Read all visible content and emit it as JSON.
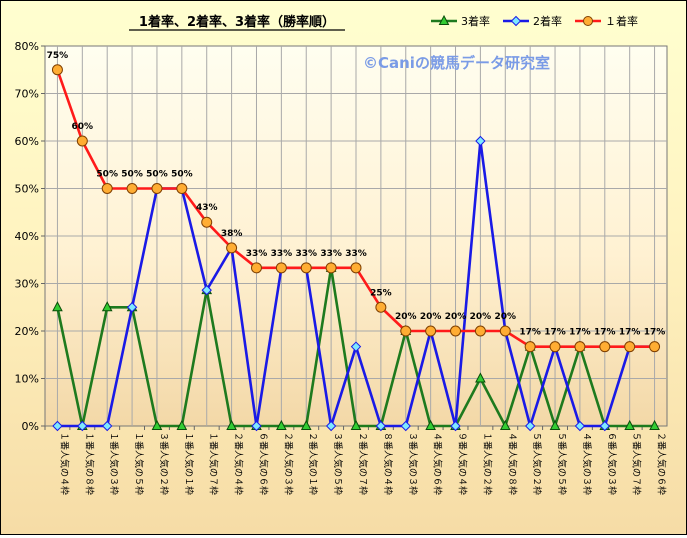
{
  "chart_data": {
    "type": "line",
    "title": "1着率、2着率、3着率（勝率順）",
    "watermark": "©Caniの競馬データ研究室",
    "ylim": [
      0,
      80
    ],
    "yticks": [
      "0%",
      "10%",
      "20%",
      "30%",
      "40%",
      "50%",
      "60%",
      "70%",
      "80%"
    ],
    "grid": true,
    "legend_position": "top-right",
    "categories": [
      "１番人気の４枠",
      "１番人気の８枠",
      "１番人気の３枠",
      "１番人気の５枠",
      "３番人気の２枠",
      "１番人気の１枠",
      "１番人気の７枠",
      "２番人気の４枠",
      "６番人気の６枠",
      "２番人気の３枠",
      "２番人気の１枠",
      "３番人気の５枠",
      "２番人気の７枠",
      "８番人気の４枠",
      "３番人気の３枠",
      "４番人気の６枠",
      "９番人気の４枠",
      "１番人気の２枠",
      "４番人気の８枠",
      "５番人気の２枠",
      "５番人気の５枠",
      "４番人気の３枠",
      "６番人気の３枠",
      "５番人気の７枠",
      "２番人気の６枠"
    ],
    "series": [
      {
        "name": "3着率",
        "color": "#1e7a1e",
        "marker": "triangle",
        "values": [
          25,
          0,
          25,
          25,
          0,
          0,
          28.6,
          0,
          0,
          0,
          0,
          33.3,
          0,
          0,
          20,
          0,
          0,
          10,
          0,
          16.7,
          0,
          16.7,
          0,
          0,
          0
        ]
      },
      {
        "name": "2着率",
        "color": "#1a1ae6",
        "marker": "diamond",
        "values": [
          0,
          0,
          0,
          25,
          50,
          50,
          28.6,
          37.5,
          0,
          33.3,
          33.3,
          0,
          16.7,
          0,
          0,
          20,
          0,
          60,
          20,
          0,
          16.7,
          0,
          0,
          16.7,
          16.7
        ]
      },
      {
        "name": "１着率",
        "color": "#ff1a1a",
        "marker": "circle",
        "values": [
          75,
          60,
          50,
          50,
          50,
          50,
          42.9,
          37.5,
          33.3,
          33.3,
          33.3,
          33.3,
          33.3,
          25,
          20,
          20,
          20,
          20,
          20,
          16.7,
          16.7,
          16.7,
          16.7,
          16.7,
          16.7
        ],
        "data_labels": [
          "75%",
          "60%",
          "50%",
          "50%",
          "50%",
          "50%",
          "43%",
          "38%",
          "33%",
          "33%",
          "33%",
          "33%",
          "33%",
          "25%",
          "20%",
          "20%",
          "20%",
          "20%",
          "20%",
          "17%",
          "17%",
          "17%",
          "17%",
          "17%",
          "17%"
        ]
      }
    ]
  }
}
